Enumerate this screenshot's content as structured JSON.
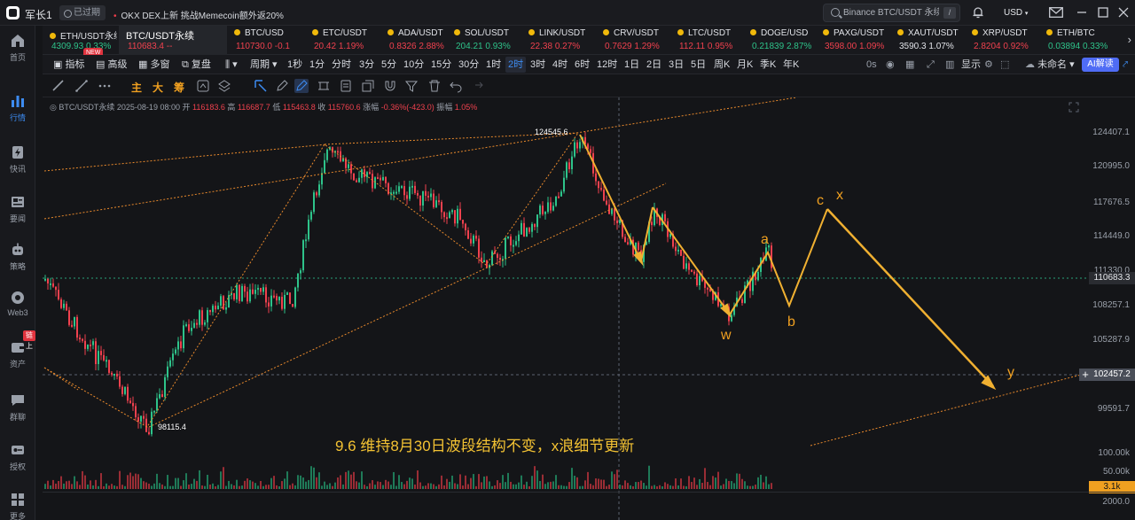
{
  "titlebar": {
    "user": "军长1",
    "expired": "已过期",
    "news": "OKX DEX上新 挑战Memecoin额外返20%",
    "search_placeholder": "Binance BTC/USDT 永续",
    "search_shortcut": "/",
    "currency": "USD"
  },
  "sidebar": {
    "items": [
      {
        "label": "首页",
        "icon": "home-icon"
      },
      {
        "label": "行情",
        "icon": "chart-bar-icon"
      },
      {
        "label": "快讯",
        "icon": "flash-news-icon"
      },
      {
        "label": "要闻",
        "icon": "news-icon"
      },
      {
        "label": "策略",
        "icon": "robot-icon"
      },
      {
        "label": "Web3",
        "icon": "web3-icon"
      },
      {
        "label": "资产",
        "icon": "wallet-icon"
      },
      {
        "label": "群聊",
        "icon": "chat-icon"
      },
      {
        "label": "授权",
        "icon": "key-icon"
      },
      {
        "label": "更多",
        "icon": "more-icon"
      }
    ],
    "asset_badge": "链上"
  },
  "tickers": [
    {
      "name": "ETH/USDT永续",
      "price": "4309.93",
      "change": "0.33%",
      "dir": "up"
    },
    {
      "name": "BTC/USDT永续",
      "price": "110683.4",
      "change": "--",
      "dir": "dn",
      "active": true
    },
    {
      "name": "BTC/USD",
      "price": "110730.0",
      "change": "-0.1",
      "dir": "dn"
    },
    {
      "name": "ETC/USDT",
      "price": "20.42",
      "change": "1.19%",
      "dir": "dn"
    },
    {
      "name": "ADA/USDT",
      "price": "0.8326",
      "change": "2.88%",
      "dir": "dn"
    },
    {
      "name": "SOL/USDT",
      "price": "204.21",
      "change": "0.93%",
      "dir": "up"
    },
    {
      "name": "LINK/USDT",
      "price": "22.38",
      "change": "0.27%",
      "dir": "dn"
    },
    {
      "name": "CRV/USDT",
      "price": "0.7629",
      "change": "1.29%",
      "dir": "dn"
    },
    {
      "name": "LTC/USDT",
      "price": "112.11",
      "change": "0.95%",
      "dir": "dn"
    },
    {
      "name": "DOGE/USD",
      "price": "0.21839",
      "change": "2.87%",
      "dir": "up"
    },
    {
      "name": "PAXG/USDT",
      "price": "3598.00",
      "change": "1.09%",
      "dir": "dn"
    },
    {
      "name": "XAUT/USDT",
      "price": "3590.3",
      "change": "1.07%",
      "dir": "up"
    },
    {
      "name": "XRP/USDT",
      "price": "2.8204",
      "change": "0.92%",
      "dir": "dn"
    },
    {
      "name": "ETH/BTC",
      "price": "0.03894",
      "change": "0.33%",
      "dir": "up"
    }
  ],
  "new_badge": "NEW",
  "intervals": {
    "tools": [
      "指标",
      "高级",
      "多窗",
      "复盘"
    ],
    "period_label": "周期",
    "items": [
      "1秒",
      "1分",
      "分时",
      "3分",
      "5分",
      "10分",
      "15分",
      "30分",
      "1时",
      "2时",
      "3时",
      "4时",
      "6时",
      "12时",
      "1日",
      "2日",
      "3日",
      "5日",
      "周K",
      "月K",
      "季K",
      "年K"
    ],
    "active": "2时",
    "zero_s": "0s",
    "display": "显示",
    "unnamed": "未命名",
    "ai": "AI解读"
  },
  "drawbar": {
    "main_letters": [
      "主",
      "大",
      "筹"
    ]
  },
  "chart": {
    "legend": {
      "symbol": "BTC/USDT永续",
      "date": "2025-08-19 08:00",
      "open_label": "开",
      "open": "116183.6",
      "high_label": "高",
      "high": "116687.7",
      "low_label": "低",
      "low": "115463.8",
      "close_label": "收",
      "close": "115760.6",
      "change_label": "涨幅",
      "change": "-0.36%(-423.0)",
      "amp_label": "振幅",
      "amp": "1.05%"
    },
    "price_ticks": [
      "124407.1",
      "120995.0",
      "117676.5",
      "114449.0",
      "111330.0",
      "108257.1",
      "105287.9",
      "99591.7"
    ],
    "current_price": "110683.3",
    "crosshair_price": "102457.2",
    "high_marker": "124545.6",
    "low_marker": "98115.4",
    "wave_labels": [
      "c",
      "x",
      "a",
      "w",
      "b",
      "y"
    ],
    "annotation": "9.6  维持8月30日波段结构不变，x浪细节更新",
    "volume_ticks": [
      "100.00k",
      "50.00k",
      "2000.0"
    ],
    "volume_current": "3.1k"
  }
}
